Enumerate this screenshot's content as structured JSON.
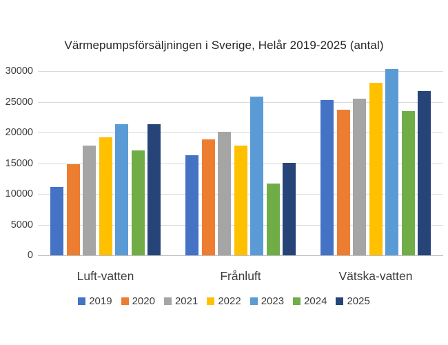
{
  "chart_data": {
    "type": "bar",
    "title": "Värmepumpsförsäljningen i Sverige, Helår 2019-2025 (antal)",
    "categories": [
      "Luft-vatten",
      "Frånluft",
      "Vätska-vatten"
    ],
    "series": [
      {
        "name": "2019",
        "color": "#4472C4",
        "values": [
          11100,
          16300,
          25300
        ]
      },
      {
        "name": "2020",
        "color": "#ED7D31",
        "values": [
          14800,
          18900,
          23700
        ]
      },
      {
        "name": "2021",
        "color": "#A5A5A5",
        "values": [
          17900,
          20100,
          25500
        ]
      },
      {
        "name": "2022",
        "color": "#FFC000",
        "values": [
          19200,
          17900,
          28100
        ]
      },
      {
        "name": "2023",
        "color": "#5B9BD5",
        "values": [
          21400,
          25800,
          30300
        ]
      },
      {
        "name": "2024",
        "color": "#70AD47",
        "values": [
          17100,
          11700,
          23500
        ]
      },
      {
        "name": "2025",
        "color": "#264478",
        "values": [
          21300,
          15100,
          26700
        ]
      }
    ],
    "ylabel": "",
    "xlabel": "",
    "ylim": [
      0,
      30000
    ],
    "ytick_step": 5000,
    "yticks": [
      "0",
      "5000",
      "10000",
      "15000",
      "20000",
      "25000",
      "30000"
    ],
    "grid": true,
    "legend_position": "bottom",
    "colors": {
      "gridline": "#d9d9d9",
      "axis_line": "#bfbfbf",
      "title_text": "#262626",
      "label_text": "#3b3b3b",
      "background": "#ffffff"
    }
  }
}
